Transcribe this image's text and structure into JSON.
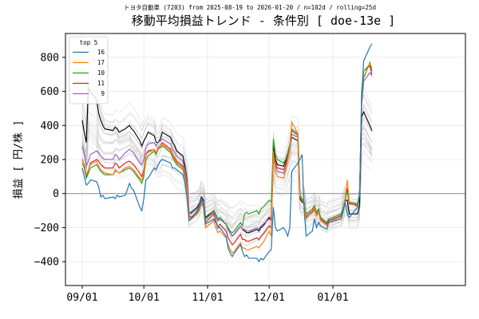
{
  "chart_data": {
    "type": "line",
    "subtitle": "トヨタ自動車 (7203) from 2025-08-19 to 2026-01-20 / n=102d / rolling=25d",
    "title": "移動平均損益トレンド - 条件別 [ doe-13e ]",
    "ylabel": "損益 [ 円/株 ]",
    "xlabel": "",
    "x_ticks": [
      "09/01",
      "10/01",
      "11/01",
      "12/01",
      "01/01"
    ],
    "y_ticks": [
      -400,
      -200,
      0,
      200,
      400,
      600,
      800
    ],
    "ylim": [
      -540,
      940
    ],
    "grid": true,
    "legend": {
      "title": "top 5",
      "position": "top-left"
    },
    "x": [
      "2025-09-01",
      "2025-09-02",
      "2025-09-03",
      "2025-09-04",
      "2025-09-05",
      "2025-09-08",
      "2025-09-09",
      "2025-09-10",
      "2025-09-11",
      "2025-09-12",
      "2025-09-16",
      "2025-09-17",
      "2025-09-18",
      "2025-09-19",
      "2025-09-22",
      "2025-09-24",
      "2025-09-25",
      "2025-09-26",
      "2025-09-29",
      "2025-09-30",
      "2025-10-01",
      "2025-10-02",
      "2025-10-03",
      "2025-10-06",
      "2025-10-07",
      "2025-10-08",
      "2025-10-09",
      "2025-10-10",
      "2025-10-14",
      "2025-10-15",
      "2025-10-16",
      "2025-10-17",
      "2025-10-20",
      "2025-10-21",
      "2025-10-22",
      "2025-10-23",
      "2025-10-24",
      "2025-10-27",
      "2025-10-28",
      "2025-10-29",
      "2025-10-30",
      "2025-10-31",
      "2025-11-04",
      "2025-11-05",
      "2025-11-06",
      "2025-11-07",
      "2025-11-10",
      "2025-11-11",
      "2025-11-12",
      "2025-11-13",
      "2025-11-14",
      "2025-11-17",
      "2025-11-18",
      "2025-11-19",
      "2025-11-20",
      "2025-11-21",
      "2025-11-25",
      "2025-11-26",
      "2025-11-27",
      "2025-11-28",
      "2025-12-01",
      "2025-12-02",
      "2025-12-03",
      "2025-12-04",
      "2025-12-05",
      "2025-12-08",
      "2025-12-09",
      "2025-12-10",
      "2025-12-11",
      "2025-12-12",
      "2025-12-15",
      "2025-12-16",
      "2025-12-17",
      "2025-12-18",
      "2025-12-19",
      "2025-12-22",
      "2025-12-23",
      "2025-12-24",
      "2025-12-25",
      "2025-12-26",
      "2025-12-29",
      "2025-12-30",
      "2026-01-05",
      "2026-01-06",
      "2026-01-07",
      "2026-01-08",
      "2026-01-09",
      "2026-01-13",
      "2026-01-14",
      "2026-01-15",
      "2026-01-16",
      "2026-01-19",
      "2026-01-20"
    ],
    "series": [
      {
        "name": "16",
        "color": "#1f77b4",
        "values": [
          150,
          100,
          50,
          60,
          80,
          70,
          40,
          -20,
          -10,
          -30,
          -20,
          -30,
          -10,
          -20,
          -10,
          60,
          30,
          20,
          -80,
          -100,
          -30,
          80,
          90,
          150,
          140,
          170,
          190,
          200,
          180,
          150,
          150,
          140,
          110,
          60,
          -30,
          -160,
          -150,
          -100,
          -80,
          -40,
          -50,
          -180,
          -150,
          -170,
          -200,
          -200,
          -250,
          -320,
          -350,
          -370,
          -350,
          -300,
          -340,
          -370,
          -360,
          -380,
          -380,
          -400,
          -380,
          -390,
          -340,
          -330,
          -80,
          -200,
          -220,
          -200,
          -220,
          -250,
          -200,
          130,
          180,
          200,
          230,
          -100,
          -250,
          -220,
          -150,
          -200,
          -170,
          -190,
          -210,
          -170,
          -150,
          -100,
          -50,
          -120,
          -140,
          -80,
          -10,
          580,
          780,
          860,
          880
        ]
      },
      {
        "name": "17",
        "color": "#ff7f0e",
        "values": [
          200,
          170,
          110,
          140,
          170,
          190,
          160,
          140,
          130,
          120,
          110,
          140,
          130,
          120,
          150,
          160,
          150,
          140,
          90,
          80,
          120,
          230,
          240,
          260,
          240,
          260,
          280,
          290,
          250,
          220,
          200,
          180,
          150,
          100,
          30,
          -140,
          -150,
          -120,
          -100,
          -60,
          -80,
          -200,
          -160,
          -200,
          -230,
          -220,
          -260,
          -300,
          -330,
          -350,
          -340,
          -290,
          -320,
          -320,
          -330,
          -330,
          -310,
          -320,
          -300,
          -290,
          -220,
          -250,
          250,
          130,
          100,
          90,
          130,
          200,
          260,
          420,
          350,
          -20,
          -40,
          -60,
          -150,
          -100,
          -80,
          -130,
          -110,
          -160,
          -190,
          -170,
          -140,
          -100,
          -30,
          80,
          -50,
          -80,
          -10,
          600,
          720,
          760,
          740
        ]
      },
      {
        "name": "10",
        "color": "#2ca02c",
        "values": [
          180,
          150,
          90,
          120,
          150,
          170,
          150,
          130,
          120,
          110,
          110,
          130,
          130,
          120,
          140,
          150,
          140,
          130,
          80,
          60,
          100,
          200,
          220,
          250,
          230,
          260,
          270,
          280,
          240,
          210,
          190,
          170,
          140,
          90,
          20,
          -140,
          -150,
          -110,
          -90,
          -50,
          -70,
          -150,
          -100,
          -120,
          -150,
          -140,
          -180,
          -200,
          -220,
          -230,
          -220,
          -170,
          -190,
          -120,
          -110,
          -120,
          -100,
          -120,
          -90,
          -80,
          -40,
          -50,
          320,
          230,
          200,
          180,
          200,
          240,
          290,
          380,
          350,
          -10,
          -30,
          -50,
          -120,
          -90,
          -70,
          -110,
          -90,
          -140,
          -170,
          -150,
          -120,
          -80,
          -30,
          10,
          -50,
          -60,
          0,
          560,
          680,
          770,
          720
        ]
      },
      {
        "name": "11",
        "color": "#d62728",
        "values": [
          200,
          170,
          100,
          140,
          180,
          200,
          190,
          170,
          160,
          150,
          150,
          180,
          170,
          150,
          180,
          190,
          180,
          170,
          120,
          100,
          140,
          230,
          250,
          260,
          240,
          270,
          280,
          300,
          260,
          230,
          210,
          190,
          160,
          110,
          40,
          -130,
          -140,
          -110,
          -90,
          -50,
          -70,
          -170,
          -120,
          -160,
          -200,
          -180,
          -220,
          -260,
          -280,
          -300,
          -290,
          -240,
          -270,
          -270,
          -280,
          -280,
          -260,
          -270,
          -250,
          -240,
          -190,
          -200,
          230,
          180,
          150,
          140,
          170,
          220,
          280,
          370,
          340,
          -20,
          -40,
          -60,
          -140,
          -110,
          -90,
          -130,
          -110,
          -150,
          -180,
          -160,
          -130,
          -90,
          -40,
          30,
          -60,
          -70,
          -10,
          570,
          720,
          750,
          700
        ]
      },
      {
        "name": "9",
        "color": "#9467bd",
        "values": [
          280,
          230,
          160,
          190,
          230,
          250,
          240,
          220,
          210,
          200,
          200,
          230,
          220,
          200,
          240,
          260,
          250,
          240,
          180,
          170,
          200,
          270,
          290,
          300,
          280,
          300,
          310,
          320,
          290,
          260,
          240,
          220,
          190,
          140,
          70,
          -110,
          -120,
          -90,
          -70,
          -30,
          -50,
          -150,
          -110,
          -130,
          -160,
          -150,
          -180,
          -210,
          -230,
          -250,
          -240,
          -190,
          -210,
          -210,
          -220,
          -220,
          -200,
          -210,
          -190,
          -180,
          -150,
          -160,
          210,
          160,
          130,
          120,
          150,
          200,
          260,
          350,
          330,
          -10,
          -30,
          -50,
          -130,
          -100,
          -80,
          -120,
          -100,
          -140,
          -170,
          -150,
          -120,
          -80,
          -30,
          30,
          -50,
          -70,
          0,
          520,
          660,
          710,
          690
        ]
      }
    ],
    "ensemble_summary": {
      "color": "#000000",
      "values": [
        430,
        360,
        300,
        620,
        600,
        550,
        470,
        430,
        400,
        380,
        370,
        390,
        380,
        360,
        380,
        400,
        380,
        370,
        310,
        280,
        310,
        330,
        360,
        340,
        300,
        300,
        320,
        360,
        330,
        300,
        280,
        250,
        220,
        160,
        80,
        -120,
        -110,
        -80,
        -60,
        -20,
        -40,
        -140,
        -100,
        -130,
        -160,
        -150,
        -180,
        -210,
        -230,
        -250,
        -240,
        -190,
        -210,
        -220,
        -230,
        -230,
        -210,
        -220,
        -200,
        -190,
        -140,
        -150,
        280,
        200,
        170,
        160,
        190,
        230,
        280,
        330,
        310,
        -30,
        -50,
        -60,
        -140,
        -110,
        -90,
        -130,
        -110,
        -150,
        -180,
        -160,
        -130,
        -90,
        -40,
        -40,
        -120,
        -120,
        -70,
        450,
        480,
        400,
        370
      ]
    }
  }
}
